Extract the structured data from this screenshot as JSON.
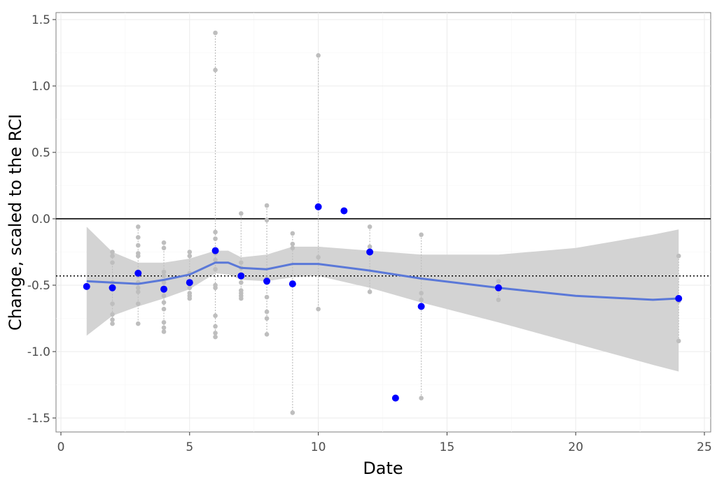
{
  "chart_data": {
    "type": "scatter",
    "xlabel": "Date",
    "ylabel": "Change, scaled to the RCI",
    "xlim": [
      -0.2,
      25.2
    ],
    "ylim": [
      -1.62,
      1.57
    ],
    "xticks": [
      "0",
      "5",
      "10",
      "15",
      "20",
      "25"
    ],
    "xtick_values": [
      0,
      5,
      10,
      15,
      20,
      25
    ],
    "yticks": [
      "1.5",
      "1.0",
      "0.5",
      "0.0",
      "-0.5",
      "-1.0",
      "-1.5"
    ],
    "ytick_values": [
      1.5,
      1.0,
      0.5,
      0.0,
      -0.5,
      -1.0,
      -1.5
    ],
    "grid": true,
    "reference_lines": {
      "solid": 0.0,
      "dotted": -0.43
    },
    "colors": {
      "mean": "#0000ff",
      "individual": "#bebebe",
      "smooth": "#5a78d8",
      "band": "#d3d3d3"
    },
    "individual_points": [
      {
        "x": 2,
        "y": [
          -0.25,
          -0.28,
          -0.33,
          -0.48,
          -0.64,
          -0.72,
          -0.76,
          -0.79
        ]
      },
      {
        "x": 3,
        "y": [
          -0.06,
          -0.14,
          -0.2,
          -0.26,
          -0.28,
          -0.43,
          -0.48,
          -0.52,
          -0.55,
          -0.64,
          -0.79
        ]
      },
      {
        "x": 4,
        "y": [
          -0.18,
          -0.22,
          -0.4,
          -0.43,
          -0.48,
          -0.58,
          -0.63,
          -0.68,
          -0.78,
          -0.82,
          -0.85
        ]
      },
      {
        "x": 5,
        "y": [
          -0.25,
          -0.28,
          -0.41,
          -0.48,
          -0.52,
          -0.56,
          -0.58,
          -0.6
        ]
      },
      {
        "x": 6,
        "y": [
          1.4,
          1.12,
          -0.1,
          -0.15,
          -0.26,
          -0.31,
          -0.38,
          -0.5,
          -0.52,
          -0.73,
          -0.81,
          -0.86,
          -0.89
        ]
      },
      {
        "x": 7,
        "y": [
          0.04,
          -0.33,
          -0.37,
          -0.42,
          -0.48,
          -0.54,
          -0.56,
          -0.58,
          -0.6
        ]
      },
      {
        "x": 8,
        "y": [
          0.1,
          -0.01,
          -0.45,
          -0.59,
          -0.7,
          -0.75,
          -0.87
        ]
      },
      {
        "x": 9,
        "y": [
          -0.11,
          -0.19,
          -0.22,
          -1.46
        ]
      },
      {
        "x": 10,
        "y": [
          1.23,
          -0.29,
          -0.68
        ]
      },
      {
        "x": 12,
        "y": [
          -0.06,
          -0.21,
          -0.55
        ]
      },
      {
        "x": 14,
        "y": [
          -0.12,
          -0.56,
          -0.61,
          -1.35
        ]
      },
      {
        "x": 17,
        "y": [
          -0.47,
          -0.61
        ]
      },
      {
        "x": 24,
        "y": [
          -0.28,
          -0.62,
          -0.92
        ]
      }
    ],
    "means": {
      "x": [
        1,
        2,
        3,
        4,
        5,
        6,
        7,
        8,
        9,
        10,
        11,
        12,
        13,
        14,
        17,
        24
      ],
      "y": [
        -0.51,
        -0.52,
        -0.41,
        -0.53,
        -0.48,
        -0.24,
        -0.43,
        -0.47,
        -0.49,
        0.09,
        0.06,
        -0.25,
        -1.35,
        -0.66,
        -0.52,
        -0.6
      ]
    },
    "smooth": {
      "x": [
        1,
        2,
        3,
        4,
        5,
        6,
        6.5,
        7,
        8,
        9,
        10,
        12,
        14,
        17,
        20,
        23,
        24
      ],
      "y": [
        -0.47,
        -0.48,
        -0.49,
        -0.46,
        -0.42,
        -0.33,
        -0.33,
        -0.37,
        -0.38,
        -0.34,
        -0.34,
        -0.39,
        -0.45,
        -0.52,
        -0.58,
        -0.61,
        -0.6
      ],
      "lower": [
        -0.88,
        -0.73,
        -0.66,
        -0.6,
        -0.53,
        -0.41,
        -0.42,
        -0.46,
        -0.47,
        -0.44,
        -0.43,
        -0.52,
        -0.63,
        -0.78,
        -0.94,
        -1.1,
        -1.15
      ],
      "upper": [
        -0.06,
        -0.25,
        -0.33,
        -0.33,
        -0.3,
        -0.24,
        -0.24,
        -0.29,
        -0.27,
        -0.21,
        -0.21,
        -0.24,
        -0.27,
        -0.27,
        -0.22,
        -0.12,
        -0.08
      ]
    }
  }
}
